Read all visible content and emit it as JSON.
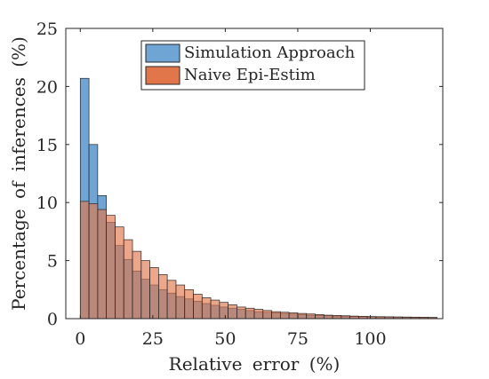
{
  "chart_data": {
    "type": "histogram",
    "xlabel": "Relative error (%)",
    "ylabel": "Percentage of inferences (%)",
    "xlim": [
      -5,
      125
    ],
    "ylim": [
      0,
      25
    ],
    "xticks": [
      0,
      25,
      50,
      75,
      100
    ],
    "yticks": [
      0,
      5,
      10,
      15,
      20,
      25
    ],
    "bin_width": 3,
    "bin_start": 0,
    "grid": false,
    "legend_position": "top-center",
    "series": [
      {
        "name": "Simulation Approach",
        "color": "#6fa5d4",
        "opacity": 1.0,
        "values": [
          20.7,
          15.0,
          10.6,
          8.3,
          6.3,
          5.1,
          4.1,
          3.4,
          2.9,
          2.5,
          2.2,
          1.9,
          1.7,
          1.5,
          1.3,
          1.15,
          1.0,
          0.9,
          0.8,
          0.7,
          0.6,
          0.55,
          0.5,
          0.45,
          0.4,
          0.35,
          0.3,
          0.28,
          0.25,
          0.22,
          0.2,
          0.18,
          0.16,
          0.15,
          0.14,
          0.13,
          0.12,
          0.11,
          0.1,
          0.09,
          0.08
        ]
      },
      {
        "name": "Naive Epi-Estim",
        "color": "#e2764b",
        "opacity": 0.65,
        "values": [
          10.1,
          9.9,
          9.4,
          8.9,
          7.9,
          6.8,
          5.8,
          5.0,
          4.4,
          3.8,
          3.3,
          2.9,
          2.5,
          2.1,
          1.8,
          1.6,
          1.4,
          1.2,
          1.0,
          0.9,
          0.8,
          0.7,
          0.6,
          0.55,
          0.5,
          0.45,
          0.4,
          0.35,
          0.3,
          0.28,
          0.25,
          0.22,
          0.2,
          0.18,
          0.17,
          0.16,
          0.15,
          0.14,
          0.13,
          0.12,
          0.11
        ]
      }
    ]
  }
}
